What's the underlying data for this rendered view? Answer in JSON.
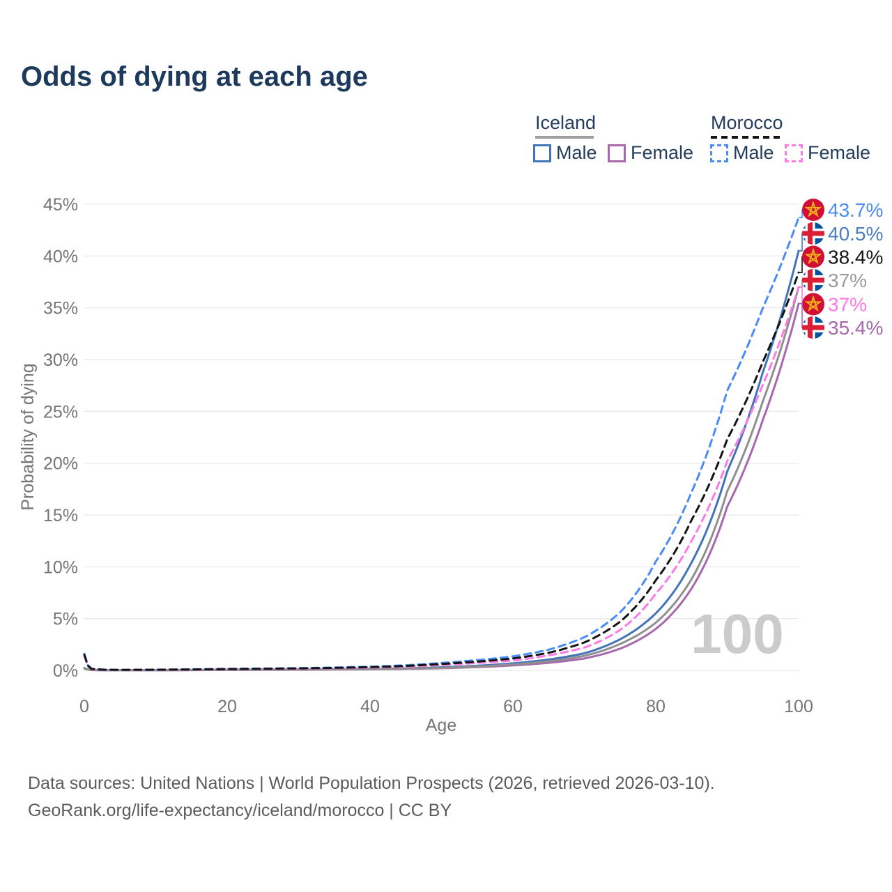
{
  "title": "Odds of dying at each age",
  "legend": {
    "groups": [
      {
        "name": "Iceland",
        "line_style": "solid",
        "underline_color": "#9e9e9e",
        "items": [
          {
            "label": "Male",
            "color": "#4374b8"
          },
          {
            "label": "Female",
            "color": "#a768ae"
          }
        ]
      },
      {
        "name": "Morocco",
        "line_style": "dashed",
        "underline_color": "#141414",
        "items": [
          {
            "label": "Male",
            "color": "#4a8bf5"
          },
          {
            "label": "Female",
            "color": "#fb7ae5"
          }
        ]
      }
    ]
  },
  "watermark": "100",
  "footer": {
    "line1": "Data sources: United Nations | World Population Prospects (2026, retrieved 2026-03-10).",
    "line2": "GeoRank.org/life-expectancy/iceland/morocco | CC BY"
  },
  "chart_data": {
    "type": "line",
    "title": "Odds of dying at each age",
    "xlabel": "Age",
    "ylabel": "Probability of dying",
    "xlim": [
      0,
      100
    ],
    "ylim": [
      0,
      45
    ],
    "x_ticks": [
      0,
      20,
      40,
      60,
      80,
      100
    ],
    "y_ticks": [
      0,
      5,
      10,
      15,
      20,
      25,
      30,
      35,
      40,
      45
    ],
    "y_tick_suffix": "%",
    "grid": true,
    "legend_position": "top-right",
    "x": [
      0,
      1,
      3,
      5,
      10,
      20,
      30,
      40,
      45,
      50,
      55,
      60,
      65,
      70,
      75,
      80,
      85,
      90,
      95,
      100
    ],
    "series": [
      {
        "name": "Iceland Male",
        "country": "Iceland",
        "sex": "Male",
        "color": "#4374b8",
        "label_color": "#4a7dc2",
        "dashed": false,
        "flag": "iceland",
        "end_label": "40.5%",
        "y": [
          0.23,
          0.04,
          0.02,
          0.015,
          0.02,
          0.07,
          0.09,
          0.14,
          0.2,
          0.3,
          0.45,
          0.68,
          1.05,
          1.65,
          3.0,
          5.5,
          10.4,
          19.2,
          28.8,
          40.5
        ]
      },
      {
        "name": "Iceland Female",
        "country": "Iceland",
        "sex": "Female",
        "color": "#a768ae",
        "label_color": "#a768ae",
        "dashed": false,
        "flag": "iceland",
        "end_label": "35.4%",
        "y": [
          0.18,
          0.03,
          0.015,
          0.012,
          0.015,
          0.04,
          0.06,
          0.1,
          0.14,
          0.21,
          0.32,
          0.48,
          0.73,
          1.15,
          2.1,
          4.0,
          7.9,
          15.8,
          24.2,
          35.4
        ]
      },
      {
        "name": "Iceland Both sexes",
        "country": "Iceland",
        "sex": "Both",
        "color": "#8f8f8f",
        "label_color": "#9a9a9a",
        "dashed": false,
        "flag": "iceland",
        "end_label": "37%",
        "y": [
          0.2,
          0.035,
          0.018,
          0.013,
          0.018,
          0.05,
          0.07,
          0.12,
          0.17,
          0.25,
          0.38,
          0.57,
          0.88,
          1.4,
          2.55,
          4.6,
          8.8,
          17.3,
          26.0,
          37.0
        ]
      },
      {
        "name": "Morocco Male",
        "country": "Morocco",
        "sex": "Male",
        "color": "#4a8bf5",
        "label_color": "#4a8bf5",
        "dashed": true,
        "flag": "morocco",
        "end_label": "43.7%",
        "y": [
          1.6,
          0.16,
          0.07,
          0.06,
          0.07,
          0.15,
          0.22,
          0.36,
          0.5,
          0.72,
          1.0,
          1.35,
          2.0,
          3.2,
          5.6,
          10.5,
          17.2,
          27.0,
          35.0,
          43.7
        ]
      },
      {
        "name": "Morocco Female",
        "country": "Morocco",
        "sex": "Female",
        "color": "#fb7ae5",
        "label_color": "#fb7ae5",
        "dashed": true,
        "flag": "morocco",
        "end_label": "37%",
        "y": [
          1.4,
          0.13,
          0.055,
          0.05,
          0.06,
          0.11,
          0.16,
          0.26,
          0.36,
          0.52,
          0.72,
          0.95,
          1.45,
          2.2,
          3.9,
          7.4,
          12.5,
          20.2,
          27.6,
          37.0
        ]
      },
      {
        "name": "Morocco Both sexes",
        "country": "Morocco",
        "sex": "Both",
        "color": "#141414",
        "label_color": "#141414",
        "dashed": true,
        "flag": "morocco",
        "end_label": "38.4%",
        "y": [
          1.5,
          0.14,
          0.06,
          0.055,
          0.065,
          0.13,
          0.19,
          0.31,
          0.43,
          0.62,
          0.85,
          1.15,
          1.7,
          2.7,
          4.7,
          8.7,
          14.5,
          22.3,
          29.8,
          38.4
        ]
      }
    ],
    "flag_colors": {
      "morocco_red": "#d21034",
      "morocco_star": "#f1b31c",
      "iceland_blue": "#02529c",
      "iceland_white": "#ffffff",
      "iceland_red": "#dc1e35"
    },
    "style": {
      "grid_color": "#ebebeb",
      "axis_text_color": "#757575",
      "watermark_color": "#cbcbcb"
    }
  }
}
